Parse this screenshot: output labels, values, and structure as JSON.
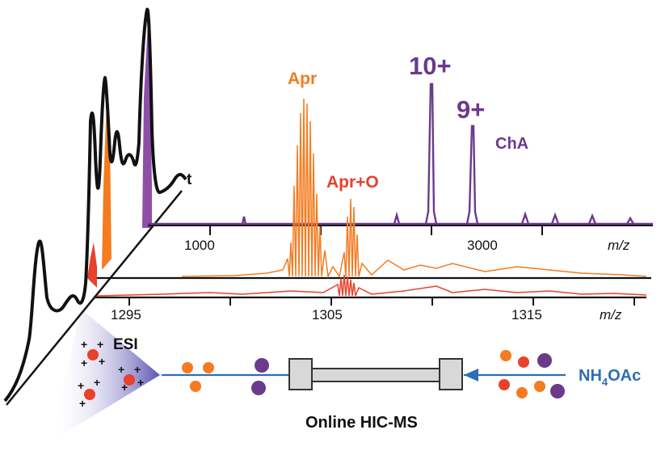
{
  "figure": {
    "time_axis_label": "t",
    "top_spectrum": {
      "ticks": [
        "1000",
        "3000"
      ],
      "axis_unit": "m/z",
      "peak_labels": {
        "apr": "Apr",
        "apr_o": "Apr+O",
        "z10": "10+",
        "z9": "9+",
        "cha": "ChA"
      }
    },
    "zoom_spectrum": {
      "ticks": [
        "1295",
        "1305",
        "1315"
      ],
      "axis_unit": "m/z"
    },
    "source_label": "ESI",
    "buffer_label": "NH",
    "buffer_subscript": "4",
    "buffer_suffix": "OAc",
    "method_label": "Online HIC-MS",
    "colors": {
      "apr": "#f47b20",
      "apr_o": "#e8412c",
      "cha": "#6b3a8c",
      "flow": "#2e6db4",
      "trace": "#111111"
    }
  }
}
